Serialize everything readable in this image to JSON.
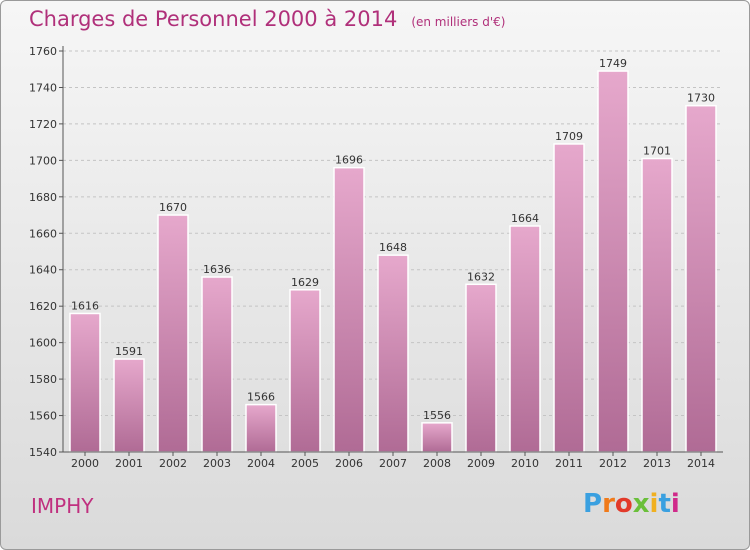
{
  "header": {
    "title": "Charges de Personnel 2000 à 2014",
    "subtitle": "(en milliers d'€)"
  },
  "commune": "IMPHY",
  "logo": {
    "text": "Proxiti",
    "colors": [
      "#3aa0e0",
      "#f07a1a",
      "#e23a2a",
      "#6abf3a",
      "#f0b020",
      "#3aa0e0",
      "#d02a8a"
    ]
  },
  "chart_data": {
    "type": "bar",
    "title": "Charges de Personnel 2000 à 2014",
    "subtitle": "(en milliers d'€)",
    "xlabel": "",
    "ylabel": "",
    "categories": [
      "2000",
      "2001",
      "2002",
      "2003",
      "2004",
      "2005",
      "2006",
      "2007",
      "2008",
      "2009",
      "2010",
      "2011",
      "2012",
      "2013",
      "2014"
    ],
    "values": [
      1616,
      1591,
      1670,
      1636,
      1566,
      1629,
      1696,
      1648,
      1556,
      1632,
      1664,
      1709,
      1749,
      1701,
      1730
    ],
    "ylim": [
      1540,
      1760
    ],
    "yticks": [
      1540,
      1560,
      1580,
      1600,
      1620,
      1640,
      1660,
      1680,
      1700,
      1720,
      1740,
      1760
    ],
    "grid": true,
    "bar_color": "#d07aaa"
  }
}
